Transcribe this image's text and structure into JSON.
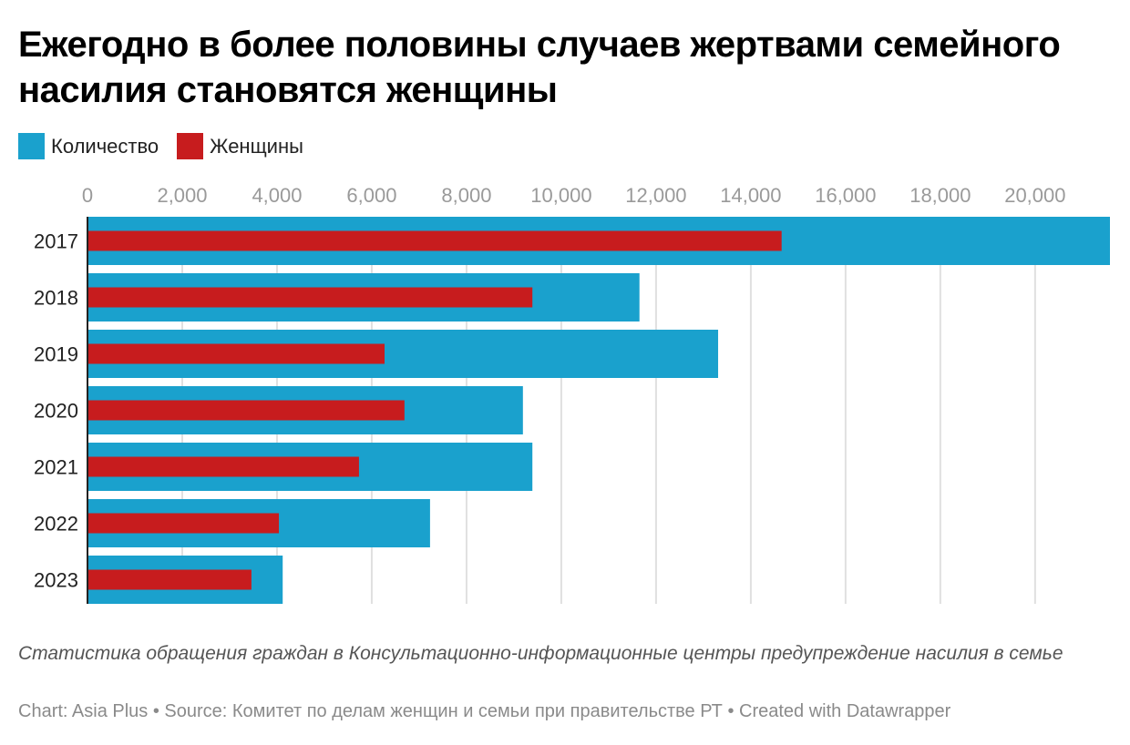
{
  "title": "Ежегодно в более половины случаев жертвами семейного насилия становятся женщины",
  "colors": {
    "total": "#1aa1cd",
    "women": "#c71c1e",
    "grid": "#e0e0e0",
    "axis": "#222222"
  },
  "legend": [
    {
      "label": "Количество",
      "color": "#1aa1cd"
    },
    {
      "label": "Женщины",
      "color": "#c71c1e"
    }
  ],
  "note": "Статистика обращения граждан в Консультационно-информационные центры предупреждение насилия в семье",
  "credit": "Chart: Asia Plus • Source: Комитет по делам женщин и семьи при правительстве РТ • Created with Datawrapper",
  "chart_data": {
    "type": "bar",
    "orientation": "horizontal",
    "title": "Ежегодно в более половины случаев жертвами семейного насилия становятся женщины",
    "categories": [
      "2017",
      "2018",
      "2019",
      "2020",
      "2021",
      "2022",
      "2023"
    ],
    "series": [
      {
        "name": "Количество",
        "color": "#1aa1cd",
        "values": [
          21580,
          11650,
          13310,
          9190,
          9390,
          7230,
          4120
        ]
      },
      {
        "name": "Женщины",
        "color": "#c71c1e",
        "values": [
          14650,
          9390,
          6270,
          6690,
          5730,
          4040,
          3460
        ]
      }
    ],
    "xlim": [
      0,
      21580
    ],
    "xticks": [
      0,
      2000,
      4000,
      6000,
      8000,
      10000,
      12000,
      14000,
      16000,
      18000,
      20000
    ],
    "xtick_labels": [
      "0",
      "2,000",
      "4,000",
      "6,000",
      "8,000",
      "10,000",
      "12,000",
      "14,000",
      "16,000",
      "18,000",
      "20,000"
    ],
    "xlabel": "",
    "ylabel": "",
    "grid": true,
    "legend_position": "top-left",
    "overlay": true
  }
}
